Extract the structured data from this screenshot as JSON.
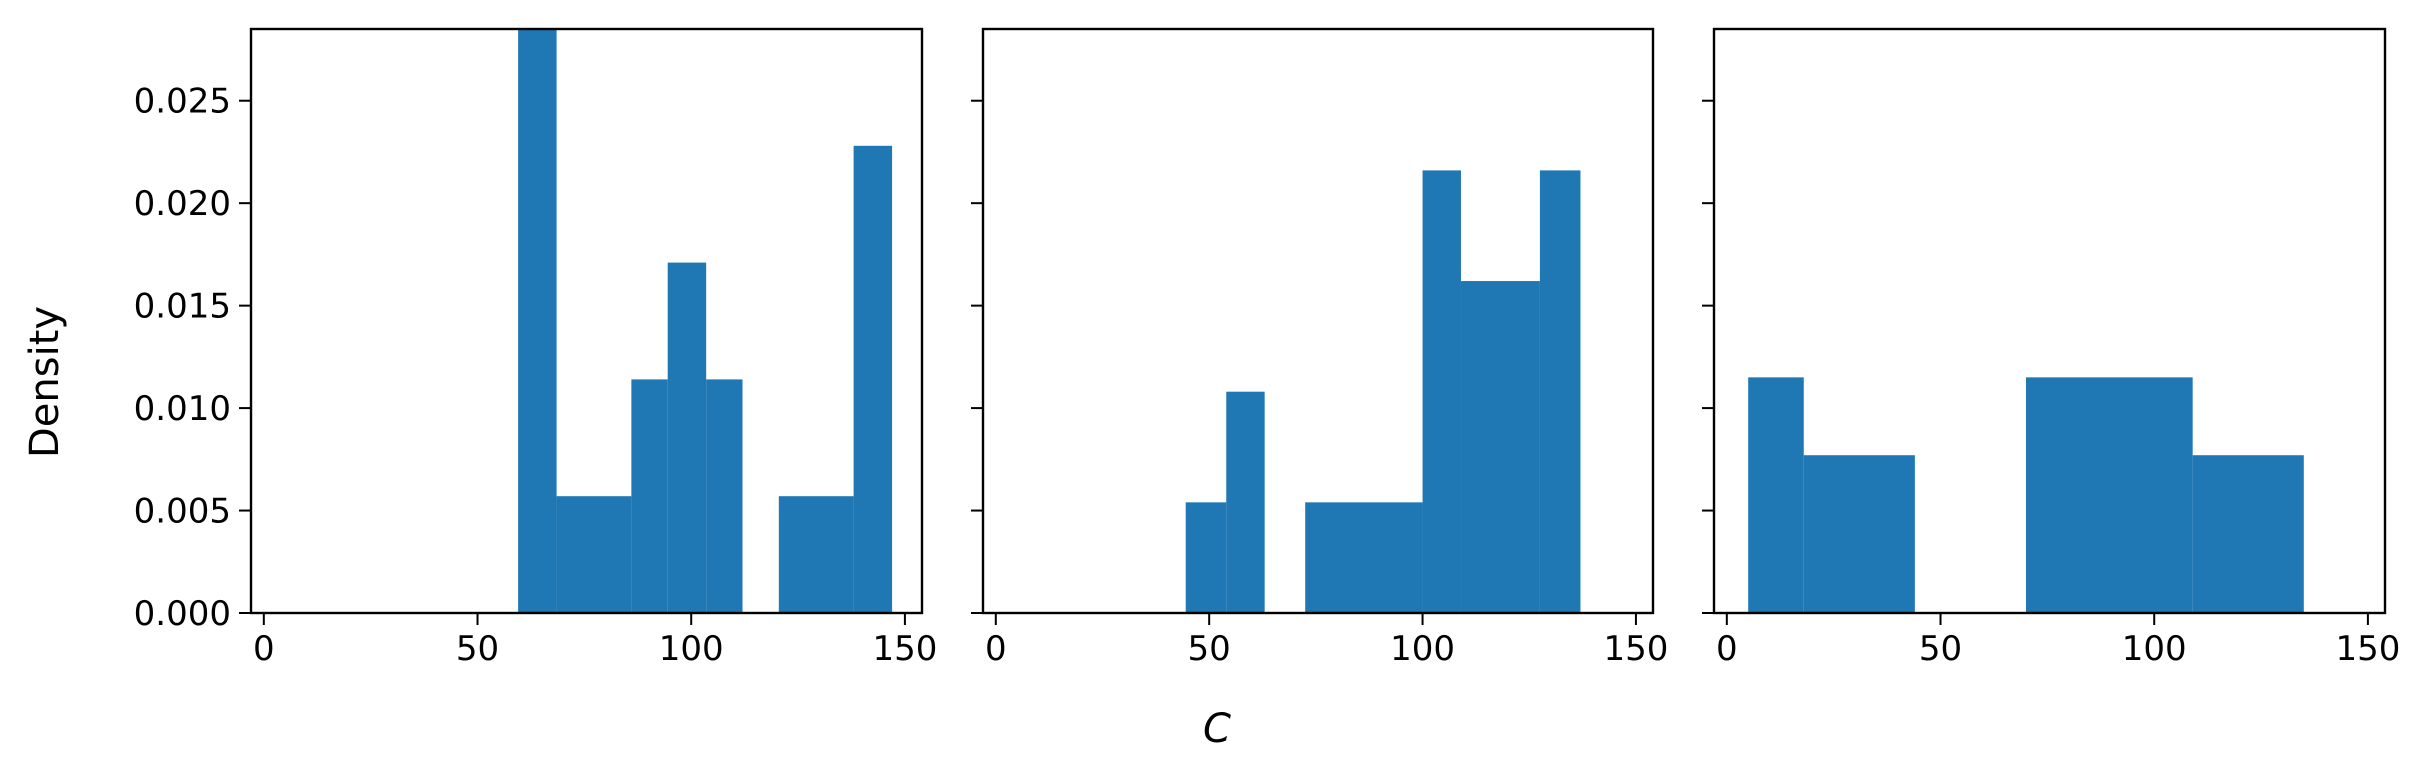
{
  "figure": {
    "ylabel": "Density",
    "xlabel": "C"
  },
  "chart_data": [
    {
      "type": "bar",
      "xlim": [
        -3,
        154
      ],
      "ylim": [
        0,
        0.0285
      ],
      "xticks": [
        0,
        50,
        100,
        150
      ],
      "yticks": [
        0.0,
        0.005,
        0.01,
        0.015,
        0.02,
        0.025
      ],
      "ytick_labels": [
        "0.000",
        "0.005",
        "0.010",
        "0.015",
        "0.020",
        "0.025"
      ],
      "color": "#1f77b4",
      "bins": [
        {
          "x0": 59.5,
          "x1": 68.5,
          "value": 0.0285
        },
        {
          "x0": 68.5,
          "x1": 86.0,
          "value": 0.0057
        },
        {
          "x0": 86.0,
          "x1": 94.5,
          "value": 0.0114
        },
        {
          "x0": 94.5,
          "x1": 103.5,
          "value": 0.0171
        },
        {
          "x0": 103.5,
          "x1": 112.0,
          "value": 0.0114
        },
        {
          "x0": 120.5,
          "x1": 138.0,
          "value": 0.0057
        },
        {
          "x0": 138.0,
          "x1": 147.0,
          "value": 0.0228
        }
      ]
    },
    {
      "type": "bar",
      "xlim": [
        -3,
        154
      ],
      "ylim": [
        0,
        0.0285
      ],
      "xticks": [
        0,
        50,
        100,
        150
      ],
      "yticks": [
        0.0,
        0.005,
        0.01,
        0.015,
        0.02,
        0.025
      ],
      "color": "#1f77b4",
      "bins": [
        {
          "x0": 44.5,
          "x1": 54.0,
          "value": 0.0054
        },
        {
          "x0": 54.0,
          "x1": 63.0,
          "value": 0.0108
        },
        {
          "x0": 72.5,
          "x1": 100.0,
          "value": 0.0054
        },
        {
          "x0": 100.0,
          "x1": 109.0,
          "value": 0.0216
        },
        {
          "x0": 109.0,
          "x1": 127.5,
          "value": 0.0162
        },
        {
          "x0": 127.5,
          "x1": 137.0,
          "value": 0.0216
        }
      ]
    },
    {
      "type": "bar",
      "xlim": [
        -3,
        154
      ],
      "ylim": [
        0,
        0.0285
      ],
      "xticks": [
        0,
        50,
        100,
        150
      ],
      "yticks": [
        0.0,
        0.005,
        0.01,
        0.015,
        0.02,
        0.025
      ],
      "color": "#1f77b4",
      "bins": [
        {
          "x0": 5.0,
          "x1": 18.0,
          "value": 0.0115
        },
        {
          "x0": 18.0,
          "x1": 44.0,
          "value": 0.0077
        },
        {
          "x0": 70.0,
          "x1": 109.0,
          "value": 0.0115
        },
        {
          "x0": 109.0,
          "x1": 135.0,
          "value": 0.0077
        }
      ]
    }
  ]
}
